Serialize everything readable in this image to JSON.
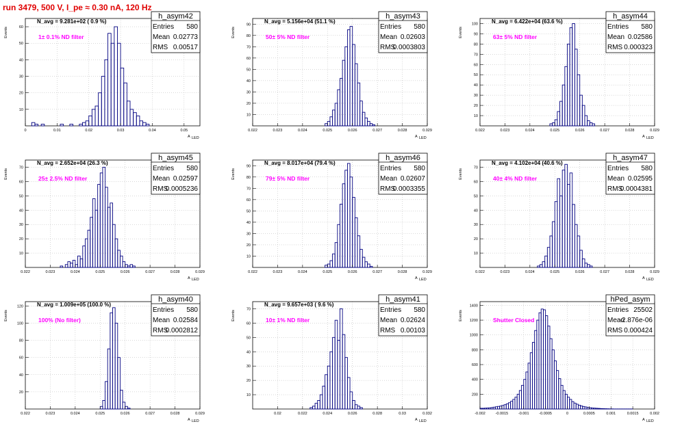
{
  "title": "run 3479,   500 V, I_pe ≈ 0.30 nA, 120 Hz",
  "colors": {
    "title": "#e00000",
    "histogram": "#000080",
    "filter_label": "#ff00ff",
    "grid": "#b0b0b0"
  },
  "stats_labels": {
    "entries": "Entries",
    "mean": "Mean",
    "rms": "RMS"
  },
  "chart_data": [
    {
      "type": "bar",
      "name": "h_asym42",
      "ylabel": "Events",
      "xlabel": "A",
      "xlabel_sub": "LED",
      "xlim": [
        0,
        0.055
      ],
      "ylim": [
        0,
        65
      ],
      "xticks": [
        0,
        0.01,
        0.02,
        0.03,
        0.04,
        0.05
      ],
      "xtick_labels": [
        "0",
        "0.01",
        "0.02",
        "0.03",
        "0.04",
        "0.05"
      ],
      "yticks": [
        10,
        20,
        30,
        40,
        50,
        60
      ],
      "ytick_labels": [
        "10",
        "20",
        "30",
        "40",
        "50",
        "60"
      ],
      "n_avg": "N_avg = 9.281e+02 ( 0.9 %)",
      "filter": "1± 0.1% ND filter",
      "entries": "580",
      "mean": "0.02773",
      "rms": "0.00517",
      "bin_start": 0,
      "bin_width": 0.001,
      "values": [
        0,
        0,
        2,
        1,
        0,
        1,
        0,
        0,
        0,
        0,
        0,
        1,
        0,
        0,
        1,
        0,
        0,
        1,
        2,
        3,
        6,
        10,
        12,
        20,
        30,
        40,
        56,
        50,
        60,
        50,
        35,
        26,
        15,
        10,
        8,
        6,
        3,
        2,
        1,
        0,
        0,
        0,
        0,
        0,
        0,
        0,
        0,
        0,
        0,
        0,
        0,
        0,
        0,
        0,
        0
      ]
    },
    {
      "type": "bar",
      "name": "h_asym43",
      "ylabel": "Events",
      "xlabel": "A",
      "xlabel_sub": "LED",
      "xlim": [
        0.022,
        0.029
      ],
      "ylim": [
        0,
        95
      ],
      "xticks": [
        0.022,
        0.023,
        0.024,
        0.025,
        0.026,
        0.027,
        0.028,
        0.029
      ],
      "xtick_labels": [
        "0.022",
        "0.023",
        "0.024",
        "0.025",
        "0.026",
        "0.027",
        "0.028",
        "0.029"
      ],
      "yticks": [
        10,
        20,
        30,
        40,
        50,
        60,
        70,
        80,
        90
      ],
      "ytick_labels": [
        "10",
        "20",
        "30",
        "40",
        "50",
        "60",
        "70",
        "80",
        "90"
      ],
      "n_avg": "N_avg = 5.156e+04 (51.1 %)",
      "filter": "50± 5% ND filter",
      "entries": "580",
      "mean": "0.02603",
      "rms": "0.0003803",
      "bin_start": 0.0249,
      "bin_width": 0.0001,
      "values": [
        2,
        4,
        8,
        14,
        20,
        32,
        42,
        58,
        70,
        85,
        88,
        72,
        55,
        38,
        22,
        12,
        7,
        4,
        2,
        1
      ]
    },
    {
      "type": "bar",
      "name": "h_asym44",
      "ylabel": "Events",
      "xlabel": "A",
      "xlabel_sub": "LED",
      "xlim": [
        0.022,
        0.029
      ],
      "ylim": [
        0,
        105
      ],
      "xticks": [
        0.022,
        0.023,
        0.024,
        0.025,
        0.026,
        0.027,
        0.028,
        0.029
      ],
      "xtick_labels": [
        "0.022",
        "0.023",
        "0.024",
        "0.025",
        "0.026",
        "0.027",
        "0.028",
        "0.029"
      ],
      "yticks": [
        10,
        20,
        30,
        40,
        50,
        60,
        70,
        80,
        90,
        100
      ],
      "ytick_labels": [
        "10",
        "20",
        "30",
        "40",
        "50",
        "60",
        "70",
        "80",
        "90",
        "100"
      ],
      "n_avg": "N_avg = 6.422e+04 (63.6 %)",
      "filter": "63± 5% ND filter",
      "entries": "580",
      "mean": "0.02586",
      "rms": "0.000323",
      "bin_start": 0.0248,
      "bin_width": 0.0001,
      "values": [
        2,
        3,
        6,
        14,
        24,
        40,
        58,
        80,
        96,
        100,
        75,
        50,
        30,
        20,
        10,
        5,
        3,
        2
      ]
    },
    {
      "type": "bar",
      "name": "h_asym45",
      "ylabel": "Events",
      "xlabel": "A",
      "xlabel_sub": "LED",
      "xlim": [
        0.022,
        0.029
      ],
      "ylim": [
        0,
        75
      ],
      "xticks": [
        0.022,
        0.023,
        0.024,
        0.025,
        0.026,
        0.027,
        0.028,
        0.029
      ],
      "xtick_labels": [
        "0.022",
        "0.023",
        "0.024",
        "0.025",
        "0.026",
        "0.027",
        "0.028",
        "0.029"
      ],
      "yticks": [
        10,
        20,
        30,
        40,
        50,
        60,
        70
      ],
      "ytick_labels": [
        "10",
        "20",
        "30",
        "40",
        "50",
        "60",
        "70"
      ],
      "n_avg": "N_avg = 2.652e+04 (26.3 %)",
      "filter": "25± 2.5% ND filter",
      "entries": "580",
      "mean": "0.02597",
      "rms": "0.0005236",
      "bin_start": 0.0234,
      "bin_width": 0.0001,
      "values": [
        1,
        0,
        2,
        4,
        3,
        5,
        2,
        8,
        6,
        15,
        20,
        26,
        35,
        48,
        40,
        58,
        66,
        70,
        56,
        42,
        45,
        30,
        20,
        12,
        8,
        4,
        2,
        1,
        2,
        1
      ]
    },
    {
      "type": "bar",
      "name": "h_asym46",
      "ylabel": "Events",
      "xlabel": "A",
      "xlabel_sub": "LED",
      "xlim": [
        0.022,
        0.029
      ],
      "ylim": [
        0,
        95
      ],
      "xticks": [
        0.022,
        0.023,
        0.024,
        0.025,
        0.026,
        0.027,
        0.028,
        0.029
      ],
      "xtick_labels": [
        "0.022",
        "0.023",
        "0.024",
        "0.025",
        "0.026",
        "0.027",
        "0.028",
        "0.029"
      ],
      "yticks": [
        10,
        20,
        30,
        40,
        50,
        60,
        70,
        80,
        90
      ],
      "ytick_labels": [
        "10",
        "20",
        "30",
        "40",
        "50",
        "60",
        "70",
        "80",
        "90"
      ],
      "n_avg": "N_avg = 8.017e+04 (79.4 %)",
      "filter": "79± 5% ND filter",
      "entries": "580",
      "mean": "0.02607",
      "rms": "0.0003355",
      "bin_start": 0.0249,
      "bin_width": 0.0001,
      "values": [
        2,
        3,
        6,
        12,
        22,
        38,
        56,
        74,
        86,
        92,
        80,
        62,
        44,
        28,
        16,
        9,
        5,
        3,
        1
      ]
    },
    {
      "type": "bar",
      "name": "h_asym47",
      "ylabel": "Events",
      "xlabel": "A",
      "xlabel_sub": "LED",
      "xlim": [
        0.022,
        0.029
      ],
      "ylim": [
        0,
        75
      ],
      "xticks": [
        0.022,
        0.023,
        0.024,
        0.025,
        0.026,
        0.027,
        0.028,
        0.029
      ],
      "xtick_labels": [
        "0.022",
        "0.023",
        "0.024",
        "0.025",
        "0.026",
        "0.027",
        "0.028",
        "0.029"
      ],
      "yticks": [
        10,
        20,
        30,
        40,
        50,
        60,
        70
      ],
      "ytick_labels": [
        "10",
        "20",
        "30",
        "40",
        "50",
        "60",
        "70"
      ],
      "n_avg": "N_avg = 4.102e+04 (40.6 %)",
      "filter": "40± 4% ND filter",
      "entries": "580",
      "mean": "0.02595",
      "rms": "0.0004381",
      "bin_start": 0.0243,
      "bin_width": 0.0001,
      "values": [
        1,
        2,
        4,
        8,
        14,
        22,
        32,
        46,
        62,
        50,
        68,
        72,
        58,
        66,
        44,
        30,
        22,
        12,
        6,
        3,
        2,
        1
      ]
    },
    {
      "type": "bar",
      "name": "h_asym40",
      "ylabel": "Events",
      "xlabel": "A",
      "xlabel_sub": "LED",
      "xlim": [
        0.022,
        0.029
      ],
      "ylim": [
        0,
        125
      ],
      "xticks": [
        0.022,
        0.023,
        0.024,
        0.025,
        0.026,
        0.027,
        0.028,
        0.029
      ],
      "xtick_labels": [
        "0.022",
        "0.023",
        "0.024",
        "0.025",
        "0.026",
        "0.027",
        "0.028",
        "0.029"
      ],
      "yticks": [
        20,
        40,
        60,
        80,
        100,
        120
      ],
      "ytick_labels": [
        "20",
        "40",
        "60",
        "80",
        "100",
        "120"
      ],
      "n_avg": "N_avg = 1.009e+05 (100.0 %)",
      "filter": "100% (No filter)",
      "entries": "580",
      "mean": "0.02584",
      "rms": "0.0002812",
      "bin_start": 0.025,
      "bin_width": 0.0001,
      "values": [
        3,
        10,
        32,
        70,
        112,
        118,
        100,
        60,
        22,
        8,
        3,
        1
      ]
    },
    {
      "type": "bar",
      "name": "h_asym41",
      "ylabel": "Events",
      "xlabel": "A",
      "xlabel_sub": "LED",
      "xlim": [
        0.018,
        0.032
      ],
      "ylim": [
        0,
        75
      ],
      "xticks": [
        0.02,
        0.022,
        0.024,
        0.026,
        0.028,
        0.03,
        0.032
      ],
      "xtick_labels": [
        "0.02",
        "0.022",
        "0.024",
        "0.026",
        "0.028",
        "0.03",
        "0.032"
      ],
      "yticks": [
        10,
        20,
        30,
        40,
        50,
        60,
        70
      ],
      "ytick_labels": [
        "10",
        "20",
        "30",
        "40",
        "50",
        "60",
        "70"
      ],
      "n_avg": "N_avg = 9.657e+03 ( 9.6 %)",
      "filter": "10± 1% ND filter",
      "entries": "580",
      "mean": "0.02624",
      "rms": "0.00103",
      "bin_start": 0.0226,
      "bin_width": 0.0002,
      "values": [
        1,
        2,
        4,
        6,
        10,
        16,
        24,
        30,
        40,
        50,
        62,
        48,
        70,
        52,
        36,
        22,
        12,
        6,
        3,
        2,
        1
      ]
    },
    {
      "type": "bar",
      "name": "hPed_asym",
      "ylabel": "Events",
      "xlabel": "A",
      "xlabel_sub": "LED",
      "xlim": [
        -0.002,
        0.002
      ],
      "ylim": [
        0,
        1450
      ],
      "xticks": [
        -0.002,
        -0.0015,
        -0.001,
        -0.0005,
        0,
        0.0005,
        0.001,
        0.0015,
        0.002
      ],
      "xtick_labels": [
        "-0.002",
        "-0.0015",
        "-0.001",
        "-0.0005",
        "0",
        "0.0005",
        "0.001",
        "0.0015",
        "0.002"
      ],
      "yticks": [
        200,
        400,
        600,
        800,
        1000,
        1200,
        1400
      ],
      "ytick_labels": [
        "200",
        "400",
        "600",
        "800",
        "1000",
        "1200",
        "1400"
      ],
      "n_avg": "",
      "filter": "Shutter Closed",
      "entries": "25502",
      "mean": "-2.876e-06",
      "rms": "0.000424",
      "bin_start": -0.002,
      "bin_width": 5e-05,
      "values": [
        10,
        10,
        12,
        14,
        16,
        20,
        25,
        30,
        35,
        40,
        48,
        58,
        70,
        85,
        105,
        130,
        160,
        200,
        250,
        320,
        400,
        500,
        620,
        760,
        900,
        1060,
        1200,
        1300,
        1350,
        1340,
        1260,
        1120,
        950,
        800,
        650,
        520,
        410,
        320,
        250,
        200,
        160,
        130,
        100,
        80,
        65,
        52,
        42,
        34,
        28,
        22,
        18,
        14,
        12,
        10,
        8,
        6,
        5,
        4,
        3,
        2,
        2,
        1,
        1,
        1,
        1,
        1,
        1,
        1,
        1,
        1,
        0,
        0,
        0,
        0,
        0,
        0,
        0,
        0,
        0,
        0
      ]
    }
  ]
}
